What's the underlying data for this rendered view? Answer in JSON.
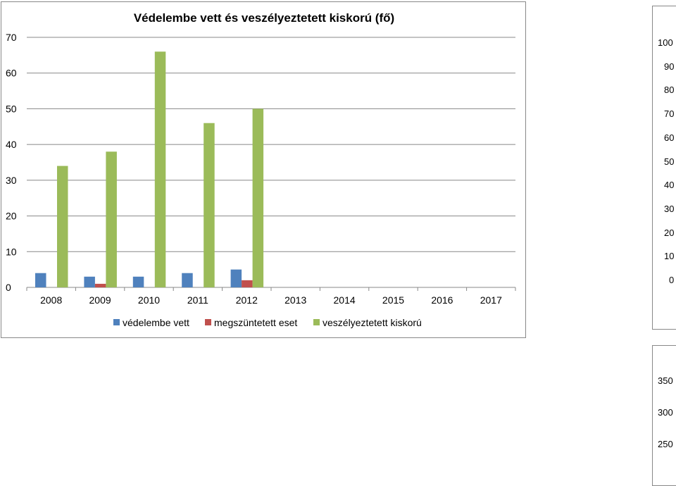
{
  "chart_data": [
    {
      "type": "bar",
      "title": "Védelembe vett és veszélyeztetett kiskorú (fő)",
      "categories": [
        "2008",
        "2009",
        "2010",
        "2011",
        "2012",
        "2013",
        "2014",
        "2015",
        "2016",
        "2017"
      ],
      "series": [
        {
          "name": "védelembe vett",
          "color": "#4f81bd",
          "values": [
            4,
            3,
            3,
            4,
            5,
            null,
            null,
            null,
            null,
            null
          ]
        },
        {
          "name": "megszüntetett eset",
          "color": "#c0504d",
          "values": [
            null,
            1,
            null,
            null,
            2,
            null,
            null,
            null,
            null,
            null
          ]
        },
        {
          "name": "veszélyeztetett kiskorú",
          "color": "#9bbb59",
          "values": [
            34,
            38,
            66,
            46,
            50,
            null,
            null,
            null,
            null,
            null
          ]
        }
      ],
      "yticks": [
        "0",
        "10",
        "20",
        "30",
        "40",
        "50",
        "60",
        "70"
      ],
      "ylim": [
        0,
        70
      ],
      "grid": true,
      "legend": "bottom"
    }
  ],
  "side_chart_top": {
    "ticks": [
      "100",
      "90",
      "80",
      "70",
      "60",
      "50",
      "40",
      "30",
      "20",
      "10",
      "0"
    ]
  },
  "side_chart_bottom": {
    "ticks": [
      "350",
      "300",
      "250"
    ]
  }
}
